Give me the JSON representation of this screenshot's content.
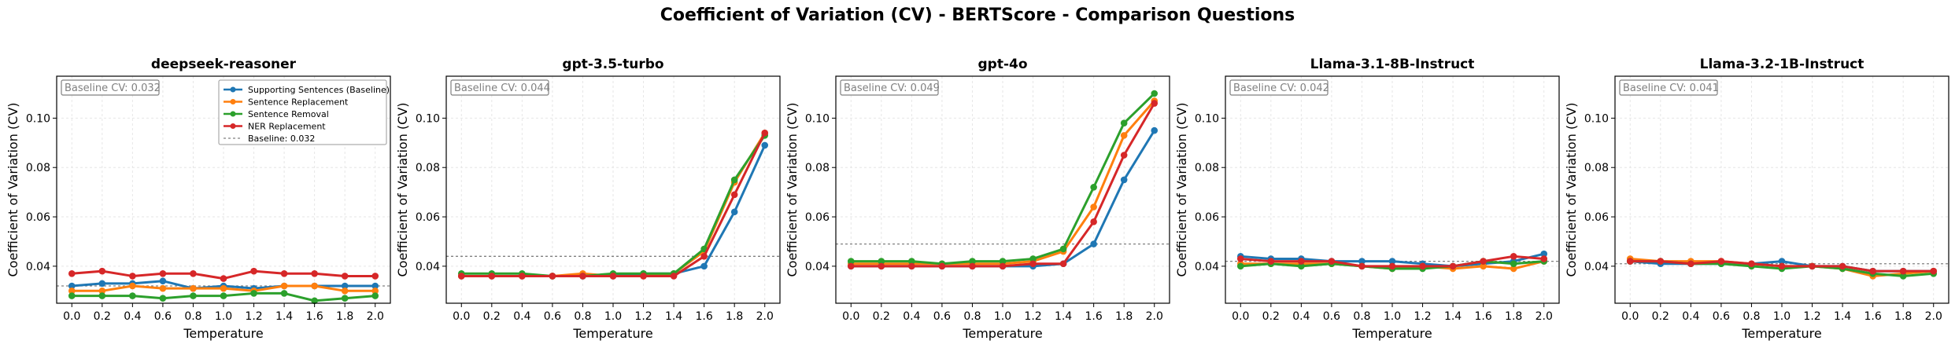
{
  "figure_title": "Coefficient of Variation (CV) - BERTScore - Comparison Questions",
  "colors": {
    "series": [
      "#1f77b4",
      "#ff7f0e",
      "#2ca02c",
      "#d62728"
    ],
    "baseline": "#808080",
    "grid": "#e6e6e6"
  },
  "chart_data": [
    {
      "type": "line",
      "title": "deepseek-reasoner",
      "xlabel": "Temperature",
      "ylabel": "Coefficient of Variation (CV)",
      "x": [
        0.0,
        0.2,
        0.4,
        0.6,
        0.8,
        1.0,
        1.2,
        1.4,
        1.6,
        1.8,
        2.0
      ],
      "x_tick_labels": [
        "0.0",
        "0.2",
        "0.4",
        "0.6",
        "0.8",
        "1.0",
        "1.2",
        "1.4",
        "1.6",
        "1.8",
        "2.0"
      ],
      "ylim": [
        0.025,
        0.117
      ],
      "y_ticks": [
        0.04,
        0.06,
        0.08,
        0.1
      ],
      "y_tick_labels": [
        "0.04",
        "0.06",
        "0.08",
        "0.10"
      ],
      "grid": true,
      "baseline": 0.032,
      "baseline_label": "Baseline CV: 0.032",
      "legend_position": "top-right",
      "legend": [
        "Supporting Sentences (Baseline)",
        "Sentence Replacement",
        "Sentence Removal",
        "NER Replacement",
        "Baseline: 0.032"
      ],
      "series": [
        {
          "name": "Supporting Sentences (Baseline)",
          "values": [
            0.032,
            0.033,
            0.033,
            0.034,
            0.031,
            0.032,
            0.031,
            0.032,
            0.032,
            0.032,
            0.032
          ]
        },
        {
          "name": "Sentence Replacement",
          "values": [
            0.03,
            0.03,
            0.032,
            0.031,
            0.031,
            0.031,
            0.03,
            0.032,
            0.032,
            0.03,
            0.03
          ]
        },
        {
          "name": "Sentence Removal",
          "values": [
            0.028,
            0.028,
            0.028,
            0.027,
            0.028,
            0.028,
            0.029,
            0.029,
            0.026,
            0.027,
            0.028
          ]
        },
        {
          "name": "NER Replacement",
          "values": [
            0.037,
            0.038,
            0.036,
            0.037,
            0.037,
            0.035,
            0.038,
            0.037,
            0.037,
            0.036,
            0.036
          ]
        }
      ]
    },
    {
      "type": "line",
      "title": "gpt-3.5-turbo",
      "xlabel": "Temperature",
      "ylabel": "Coefficient of Variation (CV)",
      "x": [
        0.0,
        0.2,
        0.4,
        0.6,
        0.8,
        1.0,
        1.2,
        1.4,
        1.6,
        1.8,
        2.0
      ],
      "x_tick_labels": [
        "0.0",
        "0.2",
        "0.4",
        "0.6",
        "0.8",
        "1.0",
        "1.2",
        "1.4",
        "1.6",
        "1.8",
        "2.0"
      ],
      "ylim": [
        0.025,
        0.117
      ],
      "y_ticks": [
        0.04,
        0.06,
        0.08,
        0.1
      ],
      "y_tick_labels": [
        "0.04",
        "0.06",
        "0.08",
        "0.10"
      ],
      "grid": true,
      "baseline": 0.044,
      "baseline_label": "Baseline CV: 0.044",
      "series": [
        {
          "name": "Supporting Sentences (Baseline)",
          "values": [
            0.036,
            0.036,
            0.036,
            0.036,
            0.036,
            0.036,
            0.037,
            0.037,
            0.04,
            0.062,
            0.089
          ]
        },
        {
          "name": "Sentence Replacement",
          "values": [
            0.036,
            0.036,
            0.036,
            0.036,
            0.037,
            0.036,
            0.036,
            0.037,
            0.046,
            0.074,
            0.094
          ]
        },
        {
          "name": "Sentence Removal",
          "values": [
            0.037,
            0.037,
            0.037,
            0.036,
            0.036,
            0.037,
            0.037,
            0.037,
            0.047,
            0.075,
            0.093
          ]
        },
        {
          "name": "NER Replacement",
          "values": [
            0.036,
            0.036,
            0.036,
            0.036,
            0.036,
            0.036,
            0.036,
            0.036,
            0.044,
            0.069,
            0.094
          ]
        }
      ]
    },
    {
      "type": "line",
      "title": "gpt-4o",
      "xlabel": "Temperature",
      "ylabel": "Coefficient of Variation (CV)",
      "x": [
        0.0,
        0.2,
        0.4,
        0.6,
        0.8,
        1.0,
        1.2,
        1.4,
        1.6,
        1.8,
        2.0
      ],
      "x_tick_labels": [
        "0.0",
        "0.2",
        "0.4",
        "0.6",
        "0.8",
        "1.0",
        "1.2",
        "1.4",
        "1.6",
        "1.8",
        "2.0"
      ],
      "ylim": [
        0.025,
        0.117
      ],
      "y_ticks": [
        0.04,
        0.06,
        0.08,
        0.1
      ],
      "y_tick_labels": [
        "0.04",
        "0.06",
        "0.08",
        "0.10"
      ],
      "grid": true,
      "baseline": 0.049,
      "baseline_label": "Baseline CV: 0.049",
      "series": [
        {
          "name": "Supporting Sentences (Baseline)",
          "values": [
            0.04,
            0.04,
            0.04,
            0.04,
            0.04,
            0.04,
            0.04,
            0.041,
            0.049,
            0.075,
            0.095
          ]
        },
        {
          "name": "Sentence Replacement",
          "values": [
            0.041,
            0.041,
            0.041,
            0.041,
            0.041,
            0.041,
            0.042,
            0.046,
            0.064,
            0.093,
            0.107
          ]
        },
        {
          "name": "Sentence Removal",
          "values": [
            0.042,
            0.042,
            0.042,
            0.041,
            0.042,
            0.042,
            0.043,
            0.047,
            0.072,
            0.098,
            0.11
          ]
        },
        {
          "name": "NER Replacement",
          "values": [
            0.04,
            0.04,
            0.04,
            0.04,
            0.04,
            0.04,
            0.041,
            0.041,
            0.058,
            0.085,
            0.106
          ]
        }
      ]
    },
    {
      "type": "line",
      "title": "Llama-3.1-8B-Instruct",
      "xlabel": "Temperature",
      "ylabel": "Coefficient of Variation (CV)",
      "x": [
        0.0,
        0.2,
        0.4,
        0.6,
        0.8,
        1.0,
        1.2,
        1.4,
        1.6,
        1.8,
        2.0
      ],
      "x_tick_labels": [
        "0.0",
        "0.2",
        "0.4",
        "0.6",
        "0.8",
        "1.0",
        "1.2",
        "1.4",
        "1.6",
        "1.8",
        "2.0"
      ],
      "ylim": [
        0.025,
        0.117
      ],
      "y_ticks": [
        0.04,
        0.06,
        0.08,
        0.1
      ],
      "y_tick_labels": [
        "0.04",
        "0.06",
        "0.08",
        "0.10"
      ],
      "grid": true,
      "baseline": 0.042,
      "baseline_label": "Baseline CV: 0.042",
      "series": [
        {
          "name": "Supporting Sentences (Baseline)",
          "values": [
            0.044,
            0.043,
            0.043,
            0.042,
            0.042,
            0.042,
            0.041,
            0.04,
            0.041,
            0.042,
            0.045
          ]
        },
        {
          "name": "Sentence Replacement",
          "values": [
            0.041,
            0.041,
            0.041,
            0.041,
            0.04,
            0.039,
            0.04,
            0.039,
            0.04,
            0.039,
            0.042
          ]
        },
        {
          "name": "Sentence Removal",
          "values": [
            0.04,
            0.041,
            0.04,
            0.041,
            0.04,
            0.039,
            0.039,
            0.04,
            0.042,
            0.041,
            0.042
          ]
        },
        {
          "name": "NER Replacement",
          "values": [
            0.043,
            0.042,
            0.042,
            0.042,
            0.04,
            0.04,
            0.04,
            0.04,
            0.042,
            0.044,
            0.043
          ]
        }
      ]
    },
    {
      "type": "line",
      "title": "Llama-3.2-1B-Instruct",
      "xlabel": "Temperature",
      "ylabel": "Coefficient of Variation (CV)",
      "x": [
        0.0,
        0.2,
        0.4,
        0.6,
        0.8,
        1.0,
        1.2,
        1.4,
        1.6,
        1.8,
        2.0
      ],
      "x_tick_labels": [
        "0.0",
        "0.2",
        "0.4",
        "0.6",
        "0.8",
        "1.0",
        "1.2",
        "1.4",
        "1.6",
        "1.8",
        "2.0"
      ],
      "ylim": [
        0.025,
        0.117
      ],
      "y_ticks": [
        0.04,
        0.06,
        0.08,
        0.1
      ],
      "y_tick_labels": [
        "0.04",
        "0.06",
        "0.08",
        "0.10"
      ],
      "grid": true,
      "baseline": 0.041,
      "baseline_label": "Baseline CV: 0.041",
      "series": [
        {
          "name": "Supporting Sentences (Baseline)",
          "values": [
            0.042,
            0.041,
            0.041,
            0.041,
            0.041,
            0.042,
            0.04,
            0.04,
            0.038,
            0.038,
            0.038
          ]
        },
        {
          "name": "Sentence Replacement",
          "values": [
            0.043,
            0.042,
            0.042,
            0.042,
            0.041,
            0.04,
            0.04,
            0.039,
            0.036,
            0.037,
            0.038
          ]
        },
        {
          "name": "Sentence Removal",
          "values": [
            0.042,
            0.042,
            0.041,
            0.041,
            0.04,
            0.039,
            0.04,
            0.039,
            0.037,
            0.036,
            0.037
          ]
        },
        {
          "name": "NER Replacement",
          "values": [
            0.042,
            0.042,
            0.041,
            0.042,
            0.041,
            0.04,
            0.04,
            0.04,
            0.038,
            0.038,
            0.038
          ]
        }
      ]
    }
  ]
}
